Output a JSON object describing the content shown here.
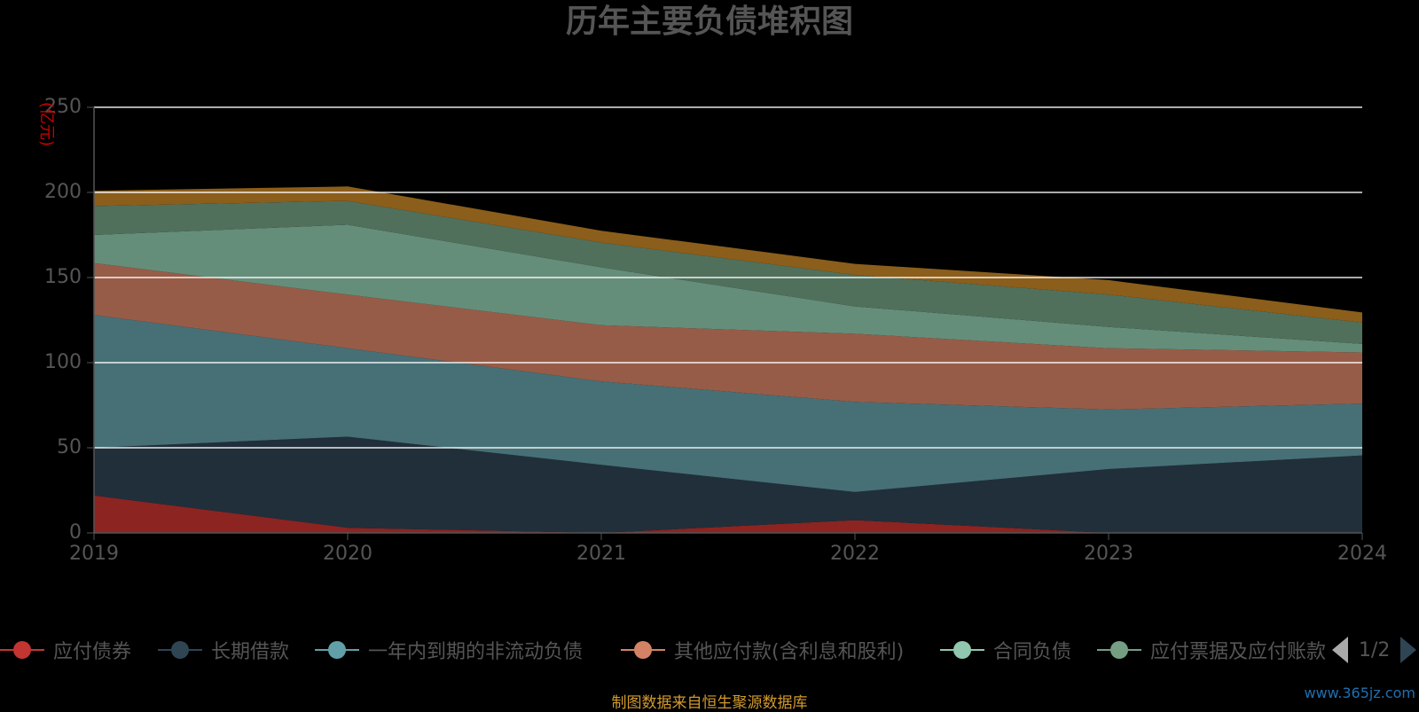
{
  "colors": {
    "background": "#000000",
    "grid": "#ffffff",
    "text": "#555555",
    "unit": "#cc0000",
    "source_note": "#d29a2e",
    "watermark": "#1f6fb0"
  },
  "legend_pager": {
    "text": "1/2"
  },
  "source_note": "制图数据来自恒生聚源数据库",
  "watermark": "www.365jz.com",
  "chart_data": {
    "type": "area",
    "stacked": true,
    "title": "历年主要负债堆积图",
    "unit_label": "(亿元)",
    "xlabel": "",
    "ylabel": "",
    "x": [
      "2019",
      "2020",
      "2021",
      "2022",
      "2023",
      "2024"
    ],
    "ylim": [
      0,
      250
    ],
    "yticks": [
      0,
      50,
      100,
      150,
      200,
      250
    ],
    "grid": true,
    "legend_position": "bottom",
    "series": [
      {
        "name": "应付债券",
        "color": "#c23531",
        "fill": "#8c2421",
        "values": [
          22,
          3,
          0,
          7.5,
          0,
          0
        ]
      },
      {
        "name": "长期借款",
        "color": "#2f4554",
        "fill": "#212f3b",
        "values": [
          28,
          53.5,
          40,
          16.5,
          37.5,
          45.5
        ]
      },
      {
        "name": "一年内到期的非流动负债",
        "color": "#61a0a8",
        "fill": "#467076",
        "values": [
          78,
          52,
          49,
          53,
          35,
          30.5
        ]
      },
      {
        "name": "其他应付款(含利息和股利)",
        "color": "#d48265",
        "fill": "#975c48",
        "values": [
          30.5,
          31.5,
          33,
          40,
          36,
          30
        ]
      },
      {
        "name": "合同负债",
        "color": "#91c7ae",
        "fill": "#658e7a",
        "values": [
          16.5,
          41,
          34,
          16,
          12.5,
          5
        ]
      },
      {
        "name": "应付票据及应付账款",
        "color": "#749f83",
        "fill": "#50705c",
        "values": [
          17,
          14,
          14.5,
          18.5,
          19,
          12.5
        ]
      },
      {
        "name": "",
        "color": "#ca8622",
        "fill": "#8b5e1b",
        "values": [
          9,
          8.5,
          7,
          6.5,
          8.5,
          6
        ]
      }
    ]
  }
}
